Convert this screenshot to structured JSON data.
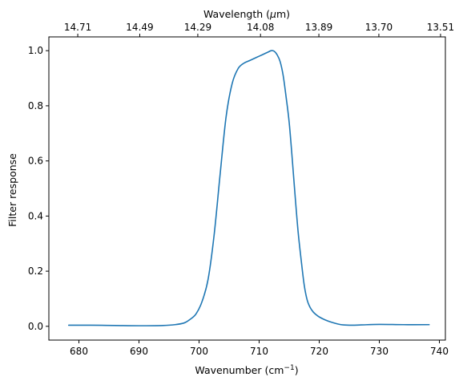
{
  "chart_data": {
    "type": "line",
    "xlabel": "Wavenumber (cm",
    "xlabel_sup": "−1",
    "xlabel_close": ")",
    "ylabel": "Filter response",
    "top_xlabel_prefix": "Wavelength (",
    "top_xlabel_mu": "μ",
    "top_xlabel_suffix": "m)",
    "xlim": [
      675.0,
      741.0
    ],
    "ylim": [
      -0.05,
      1.05
    ],
    "x_ticks": [
      {
        "value": 680,
        "label": "680"
      },
      {
        "value": 690,
        "label": "690"
      },
      {
        "value": 700,
        "label": "700"
      },
      {
        "value": 710,
        "label": "710"
      },
      {
        "value": 720,
        "label": "720"
      },
      {
        "value": 730,
        "label": "730"
      },
      {
        "value": 740,
        "label": "740"
      }
    ],
    "y_ticks": [
      {
        "value": 0.0,
        "label": "0.0"
      },
      {
        "value": 0.2,
        "label": "0.2"
      },
      {
        "value": 0.4,
        "label": "0.4"
      },
      {
        "value": 0.6,
        "label": "0.6"
      },
      {
        "value": 0.8,
        "label": "0.8"
      },
      {
        "value": 1.0,
        "label": "1.0"
      }
    ],
    "top_ticks": [
      {
        "value": 14.71,
        "label": "14.71"
      },
      {
        "value": 14.49,
        "label": "14.49"
      },
      {
        "value": 14.29,
        "label": "14.29"
      },
      {
        "value": 14.08,
        "label": "14.08"
      },
      {
        "value": 13.89,
        "label": "13.89"
      },
      {
        "value": 13.7,
        "label": "13.70"
      },
      {
        "value": 13.51,
        "label": "13.51"
      }
    ],
    "grid": false,
    "series": [
      {
        "color": "#1f77b4",
        "x": [
          678.3,
          682,
          686,
          690,
          694,
          696,
          697.5,
          698.5,
          699.5,
          700.5,
          701.5,
          702.5,
          703.5,
          704.5,
          705.5,
          706.5,
          707.5,
          708.5,
          709.5,
          710.5,
          711.5,
          712.0,
          712.5,
          713.0,
          713.5,
          714.0,
          714.5,
          715.0,
          715.5,
          716.0,
          716.5,
          717.0,
          717.5,
          718.0,
          718.5,
          719.0,
          719.5,
          720.0,
          721.0,
          722.0,
          723.0,
          724.0,
          725.5,
          727.0,
          730.0,
          734.0,
          738.3
        ],
        "y": [
          0.004,
          0.004,
          0.003,
          0.002,
          0.003,
          0.006,
          0.012,
          0.025,
          0.045,
          0.09,
          0.17,
          0.33,
          0.55,
          0.76,
          0.88,
          0.935,
          0.955,
          0.965,
          0.975,
          0.985,
          0.995,
          1.0,
          0.998,
          0.985,
          0.96,
          0.91,
          0.83,
          0.74,
          0.61,
          0.47,
          0.34,
          0.24,
          0.15,
          0.095,
          0.068,
          0.052,
          0.042,
          0.034,
          0.023,
          0.015,
          0.009,
          0.005,
          0.004,
          0.005,
          0.007,
          0.006,
          0.006
        ]
      }
    ]
  }
}
